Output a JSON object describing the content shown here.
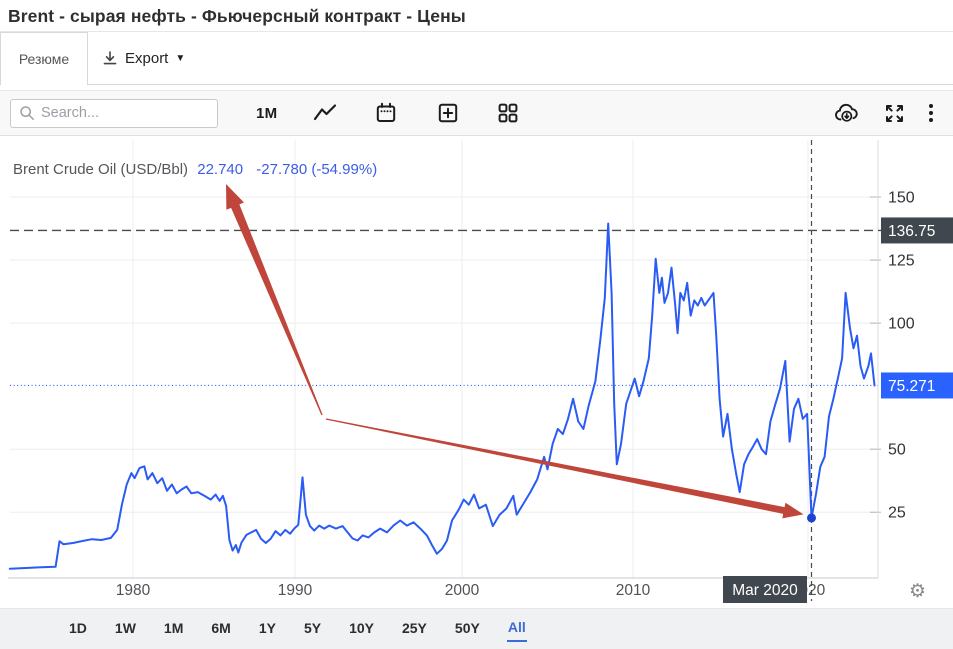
{
  "title": "Brent - сырая нефть - Фьючерсный контракт - Цены",
  "tabs": {
    "summary": "Резюме",
    "export": "Export"
  },
  "toolbar": {
    "search_placeholder": "Search...",
    "interval": "1M"
  },
  "legend": {
    "name": "Brent Crude Oil (USD/Bbl)",
    "price": "22.740",
    "change": "-27.780 (-54.99%)"
  },
  "ranges": [
    "1D",
    "1W",
    "1M",
    "6M",
    "1Y",
    "5Y",
    "10Y",
    "25Y",
    "50Y",
    "All"
  ],
  "active_range": "All",
  "colors": {
    "accent_blue": "#2a5cf5",
    "badge_blue": "#2962ff",
    "badge_dark": "#40474f",
    "arrow_red": "#c0453a",
    "dot_blue": "#1d44cf",
    "legend_blue": "#3d5ce8"
  },
  "annotations": {
    "arrow_color": "#c0453a",
    "arrows": [
      "points-to-legend-price",
      "points-to-mar-2020-low"
    ]
  },
  "chart_data": {
    "type": "line",
    "title": "Brent Crude Oil (USD/Bbl)",
    "xlabel": "",
    "ylabel": "USD/Bbl",
    "x_ticks": [
      1980,
      1990,
      2000,
      2010,
      2020
    ],
    "y_ticks": [
      150,
      125,
      100,
      50,
      25
    ],
    "ylim": [
      0,
      160
    ],
    "grid": true,
    "high_line": {
      "label": "136.75",
      "value": 136.75,
      "style": "dashed-dark"
    },
    "current_line": {
      "label": "75.271",
      "value": 75.271,
      "style": "dotted-blue"
    },
    "crosshair": {
      "label": "Mar 2020",
      "year": 2020.2,
      "value": 22.74
    },
    "series": [
      {
        "name": "Brent Crude Oil",
        "points": [
          [
            1972.2,
            2.6
          ],
          [
            1973.2,
            2.9
          ],
          [
            1974.2,
            3.2
          ],
          [
            1975.1,
            3.4
          ],
          [
            1975.35,
            13.5
          ],
          [
            1975.6,
            12.3
          ],
          [
            1976.2,
            12.8
          ],
          [
            1976.8,
            13.6
          ],
          [
            1977.4,
            14.3
          ],
          [
            1978.0,
            14.0
          ],
          [
            1978.6,
            14.8
          ],
          [
            1979.0,
            18
          ],
          [
            1979.3,
            28
          ],
          [
            1979.6,
            36
          ],
          [
            1979.9,
            40.5
          ],
          [
            1980.1,
            38.5
          ],
          [
            1980.4,
            42.5
          ],
          [
            1980.7,
            43.2
          ],
          [
            1980.9,
            38
          ],
          [
            1981.2,
            40.5
          ],
          [
            1981.5,
            36.5
          ],
          [
            1981.8,
            38.5
          ],
          [
            1982.1,
            33.5
          ],
          [
            1982.4,
            36
          ],
          [
            1982.7,
            32.5
          ],
          [
            1983.0,
            34
          ],
          [
            1983.3,
            35.2
          ],
          [
            1983.6,
            32.5
          ],
          [
            1984.0,
            33
          ],
          [
            1984.4,
            31.5
          ],
          [
            1984.8,
            30
          ],
          [
            1985.1,
            32
          ],
          [
            1985.35,
            29.5
          ],
          [
            1985.55,
            31.5
          ],
          [
            1985.75,
            27.5
          ],
          [
            1985.95,
            14
          ],
          [
            1986.15,
            9.8
          ],
          [
            1986.35,
            12
          ],
          [
            1986.5,
            9
          ],
          [
            1986.7,
            13
          ],
          [
            1987.0,
            16
          ],
          [
            1987.3,
            17
          ],
          [
            1987.6,
            18
          ],
          [
            1987.9,
            14.5
          ],
          [
            1988.2,
            12.8
          ],
          [
            1988.5,
            14.5
          ],
          [
            1988.8,
            17.5
          ],
          [
            1989.1,
            15.8
          ],
          [
            1989.4,
            18
          ],
          [
            1989.7,
            16.5
          ],
          [
            1989.95,
            18.5
          ],
          [
            1990.2,
            20
          ],
          [
            1990.45,
            38.8
          ],
          [
            1990.65,
            24
          ],
          [
            1990.9,
            19.5
          ],
          [
            1991.15,
            17.7
          ],
          [
            1991.45,
            19.7
          ],
          [
            1991.75,
            18.5
          ],
          [
            1992.05,
            19.7
          ],
          [
            1992.45,
            18.5
          ],
          [
            1992.85,
            19.5
          ],
          [
            1993.15,
            17
          ],
          [
            1993.45,
            14.6
          ],
          [
            1993.75,
            13.8
          ],
          [
            1994.05,
            15.8
          ],
          [
            1994.4,
            15
          ],
          [
            1994.75,
            17
          ],
          [
            1995.1,
            18.5
          ],
          [
            1995.5,
            17
          ],
          [
            1995.9,
            19.7
          ],
          [
            1996.3,
            21.7
          ],
          [
            1996.7,
            19.7
          ],
          [
            1997.1,
            21
          ],
          [
            1997.5,
            18.5
          ],
          [
            1997.9,
            15.8
          ],
          [
            1998.2,
            12
          ],
          [
            1998.5,
            8.5
          ],
          [
            1998.8,
            10.5
          ],
          [
            1999.1,
            13.8
          ],
          [
            1999.4,
            21.7
          ],
          [
            1999.8,
            26
          ],
          [
            2000.1,
            30
          ],
          [
            2000.4,
            28
          ],
          [
            2000.7,
            32
          ],
          [
            2001.0,
            26.5
          ],
          [
            2001.4,
            28
          ],
          [
            2001.8,
            19.5
          ],
          [
            2002.2,
            24
          ],
          [
            2002.6,
            26.5
          ],
          [
            2003.0,
            31.5
          ],
          [
            2003.2,
            24
          ],
          [
            2003.6,
            28.5
          ],
          [
            2004.0,
            33
          ],
          [
            2004.4,
            38
          ],
          [
            2004.8,
            47
          ],
          [
            2005.0,
            42
          ],
          [
            2005.3,
            52
          ],
          [
            2005.6,
            58
          ],
          [
            2005.9,
            56
          ],
          [
            2006.2,
            62
          ],
          [
            2006.5,
            70
          ],
          [
            2006.8,
            61
          ],
          [
            2007.1,
            58
          ],
          [
            2007.4,
            67
          ],
          [
            2007.8,
            77
          ],
          [
            2008.1,
            94
          ],
          [
            2008.35,
            110
          ],
          [
            2008.55,
            139.5
          ],
          [
            2008.75,
            112
          ],
          [
            2008.9,
            68
          ],
          [
            2009.05,
            44
          ],
          [
            2009.3,
            52
          ],
          [
            2009.6,
            68
          ],
          [
            2009.9,
            74
          ],
          [
            2010.1,
            78
          ],
          [
            2010.35,
            71
          ],
          [
            2010.6,
            77
          ],
          [
            2010.9,
            86
          ],
          [
            2011.1,
            103
          ],
          [
            2011.3,
            125.5
          ],
          [
            2011.5,
            112
          ],
          [
            2011.65,
            118
          ],
          [
            2011.8,
            108
          ],
          [
            2012.0,
            112
          ],
          [
            2012.2,
            122
          ],
          [
            2012.4,
            108
          ],
          [
            2012.55,
            96
          ],
          [
            2012.7,
            112
          ],
          [
            2012.9,
            109
          ],
          [
            2013.1,
            116
          ],
          [
            2013.3,
            103
          ],
          [
            2013.5,
            109
          ],
          [
            2013.7,
            107
          ],
          [
            2013.9,
            110
          ],
          [
            2014.1,
            107
          ],
          [
            2014.4,
            110
          ],
          [
            2014.6,
            112
          ],
          [
            2014.75,
            96
          ],
          [
            2014.95,
            70
          ],
          [
            2015.15,
            55
          ],
          [
            2015.4,
            64
          ],
          [
            2015.65,
            50
          ],
          [
            2015.9,
            40
          ],
          [
            2016.1,
            33
          ],
          [
            2016.35,
            44
          ],
          [
            2016.6,
            48
          ],
          [
            2016.85,
            51
          ],
          [
            2017.1,
            54
          ],
          [
            2017.35,
            50
          ],
          [
            2017.6,
            48
          ],
          [
            2017.85,
            61
          ],
          [
            2018.1,
            67
          ],
          [
            2018.4,
            74
          ],
          [
            2018.7,
            85
          ],
          [
            2018.95,
            53
          ],
          [
            2019.2,
            66
          ],
          [
            2019.45,
            70
          ],
          [
            2019.7,
            62
          ],
          [
            2019.95,
            64
          ],
          [
            2020.2,
            22.74
          ],
          [
            2020.45,
            32
          ],
          [
            2020.7,
            43
          ],
          [
            2020.95,
            47
          ],
          [
            2021.2,
            63
          ],
          [
            2021.45,
            70
          ],
          [
            2021.7,
            78
          ],
          [
            2021.95,
            86
          ],
          [
            2022.15,
            112
          ],
          [
            2022.4,
            98
          ],
          [
            2022.6,
            90
          ],
          [
            2022.8,
            95
          ],
          [
            2023.0,
            83
          ],
          [
            2023.2,
            78
          ],
          [
            2023.45,
            83
          ],
          [
            2023.6,
            88
          ],
          [
            2023.8,
            75.27
          ]
        ]
      }
    ]
  }
}
